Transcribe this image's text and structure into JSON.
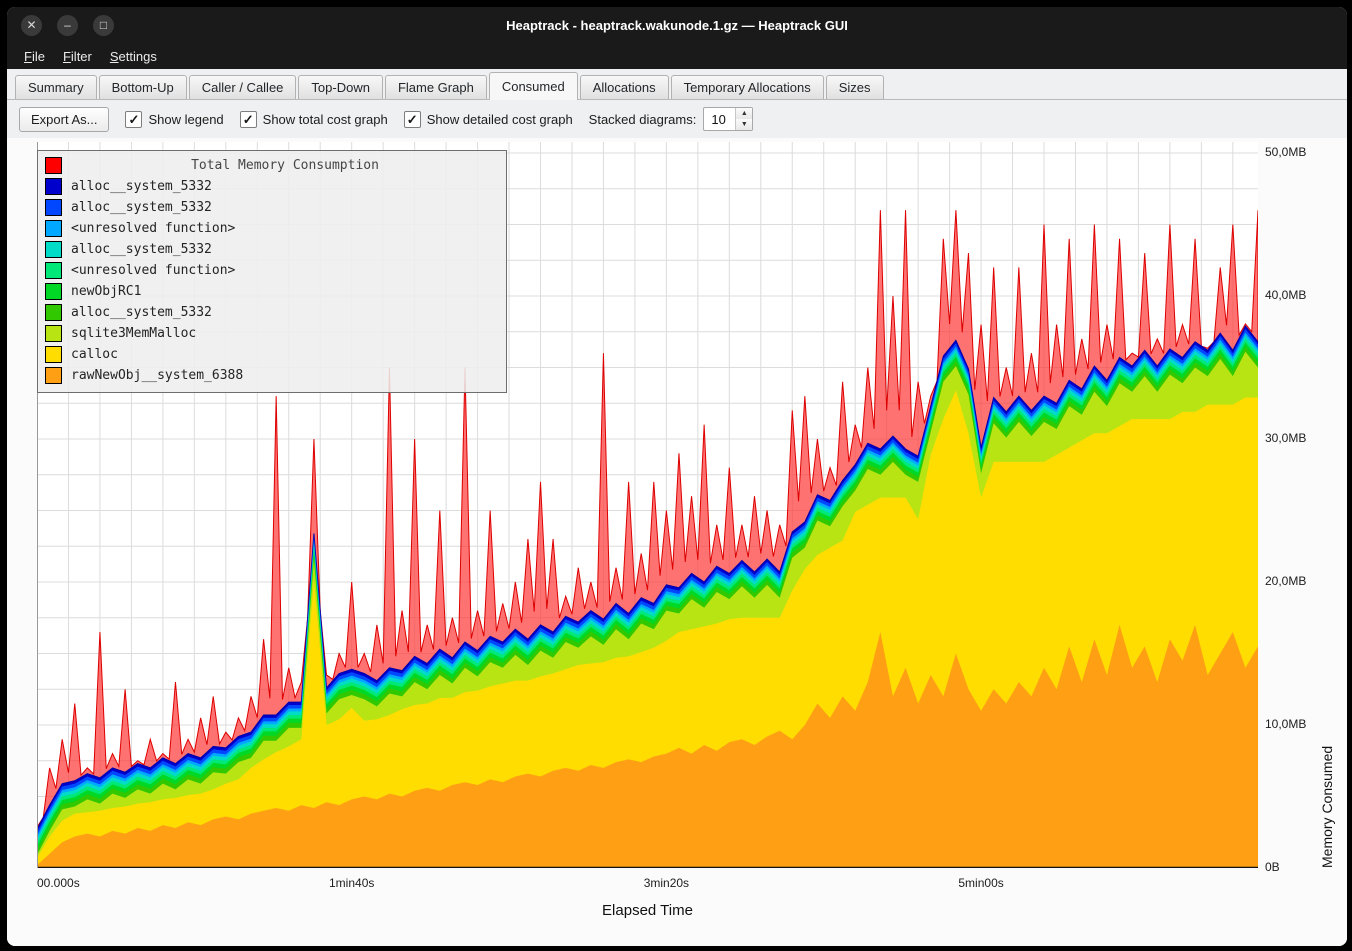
{
  "window": {
    "title": "Heaptrack - heaptrack.wakunode.1.gz — Heaptrack GUI",
    "buttons": [
      {
        "name": "close",
        "glyph": "✕"
      },
      {
        "name": "minimize",
        "glyph": "–"
      },
      {
        "name": "maximize",
        "glyph": "□"
      }
    ]
  },
  "menu": {
    "items": [
      "File",
      "Filter",
      "Settings"
    ]
  },
  "tabs": {
    "items": [
      "Summary",
      "Bottom-Up",
      "Caller / Callee",
      "Top-Down",
      "Flame Graph",
      "Consumed",
      "Allocations",
      "Temporary Allocations",
      "Sizes"
    ],
    "active": "Consumed"
  },
  "toolbar": {
    "export_button": "Export As...",
    "checkboxes": [
      {
        "label": "Show legend",
        "checked": true
      },
      {
        "label": "Show total cost graph",
        "checked": true
      },
      {
        "label": "Show detailed cost graph",
        "checked": true
      }
    ],
    "stacked_label": "Stacked diagrams:",
    "stacked_value": "10"
  },
  "icons": {
    "check": "✓",
    "spin_up": "▲",
    "spin_down": "▼"
  },
  "chart_data": {
    "type": "area",
    "legend_title": "Total Memory Consumption",
    "xlabel": "Elapsed Time",
    "ylabel": "Memory Consumed",
    "x_max_seconds": 388,
    "y_max_mb": 50,
    "t_step_seconds": 4,
    "grid": {
      "x_every_seconds": 10,
      "y_every_mb": 2.5
    },
    "x_ticks": [
      {
        "t": 0,
        "label": "00.000s"
      },
      {
        "t": 100,
        "label": "1min40s"
      },
      {
        "t": 200,
        "label": "3min20s"
      },
      {
        "t": 300,
        "label": "5min00s"
      }
    ],
    "y_ticks": [
      {
        "v": 0,
        "label": "0B"
      },
      {
        "v": 10,
        "label": "10,0MB"
      },
      {
        "v": 20,
        "label": "20,0MB"
      },
      {
        "v": 30,
        "label": "30,0MB"
      },
      {
        "v": 40,
        "label": "40,0MB"
      },
      {
        "v": 50,
        "label": "50,0MB"
      }
    ],
    "total": {
      "name": "Total Memory Consumption",
      "color": "#ff0000",
      "values": [
        1.0,
        7.0,
        9.0,
        11.5,
        7.0,
        16.5,
        8.0,
        12.5,
        7.5,
        9.0,
        8.0,
        13.0,
        9.0,
        10.5,
        12.0,
        9.5,
        10.5,
        12.0,
        16.0,
        33.0,
        14.0,
        13.0,
        30.0,
        13.5,
        15.0,
        20.0,
        15.0,
        17.0,
        35.0,
        18.0,
        30.0,
        17.0,
        25.0,
        17.5,
        35.0,
        18.0,
        25.0,
        18.5,
        20.0,
        23.0,
        27.0,
        23.0,
        19.0,
        21.0,
        20.0,
        36.0,
        21.0,
        27.0,
        22.0,
        27.0,
        25.0,
        29.0,
        26.0,
        31.0,
        24.0,
        28.0,
        24.0,
        26.0,
        25.0,
        24.0,
        32.0,
        33.0,
        30.0,
        28.0,
        34.0,
        31.0,
        35.0,
        46.0,
        40.0,
        46.0,
        34.0,
        33.0,
        44.0,
        46.0,
        43.0,
        38.0,
        42.0,
        35.0,
        42.0,
        36.0,
        45.0,
        38.0,
        44.0,
        37.0,
        45.0,
        38.0,
        44.0,
        36.0,
        43.0,
        37.0,
        45.0,
        38.0,
        44.0,
        36.0,
        42.0,
        45.0,
        38.0,
        46.0
      ]
    },
    "stack": [
      {
        "name": "rawNewObj__system_6388",
        "color": "#ffa014",
        "values": [
          0.2,
          1.0,
          1.8,
          2.2,
          2.4,
          2.2,
          2.6,
          2.4,
          2.8,
          2.6,
          3.0,
          2.8,
          3.2,
          3.0,
          3.4,
          3.6,
          3.4,
          3.8,
          4.0,
          4.2,
          4.0,
          4.4,
          4.2,
          4.6,
          4.4,
          4.8,
          5.0,
          4.8,
          5.2,
          5.0,
          5.4,
          5.6,
          5.4,
          5.8,
          6.0,
          5.8,
          6.2,
          6.0,
          6.4,
          6.6,
          6.4,
          6.8,
          7.0,
          6.8,
          7.2,
          7.0,
          7.4,
          7.6,
          7.4,
          7.8,
          8.0,
          8.4,
          8.0,
          8.6,
          8.2,
          8.8,
          9.0,
          8.6,
          9.2,
          9.6,
          9.0,
          10.0,
          11.5,
          10.5,
          12.0,
          11.0,
          13.0,
          16.5,
          12.0,
          14.0,
          11.5,
          13.5,
          12.0,
          15.0,
          12.5,
          11.0,
          12.5,
          11.5,
          13.0,
          12.0,
          14.0,
          12.5,
          15.5,
          13.0,
          16.0,
          13.5,
          17.0,
          14.0,
          15.5,
          13.0,
          16.0,
          14.5,
          17.0,
          13.5,
          15.0,
          16.5,
          14.0,
          15.5
        ]
      },
      {
        "name": "calloc",
        "color": "#ffdd00",
        "values": [
          0.5,
          1.2,
          1.5,
          1.6,
          1.5,
          1.8,
          1.6,
          1.9,
          1.7,
          2.0,
          1.8,
          2.1,
          1.9,
          2.2,
          2.1,
          2.3,
          2.8,
          3.2,
          3.6,
          3.9,
          4.5,
          4.6,
          16.0,
          5.4,
          6.0,
          6.4,
          5.3,
          5.6,
          5.5,
          6.1,
          6.0,
          5.9,
          6.5,
          6.1,
          6.3,
          6.6,
          6.5,
          6.9,
          6.7,
          6.5,
          7.0,
          6.8,
          6.9,
          7.4,
          7.1,
          7.4,
          7.3,
          7.2,
          7.7,
          7.6,
          7.9,
          8.1,
          8.7,
          8.3,
          8.9,
          8.6,
          8.5,
          8.9,
          8.3,
          7.9,
          10.4,
          10.9,
          10.4,
          11.9,
          10.9,
          13.9,
          12.4,
          9.4,
          13.9,
          11.9,
          12.9,
          15.4,
          19.4,
          18.4,
          17.9,
          14.9,
          15.9,
          16.9,
          15.4,
          16.4,
          14.4,
          16.4,
          13.9,
          16.9,
          14.4,
          16.9,
          13.9,
          17.4,
          15.9,
          18.4,
          15.4,
          17.4,
          14.9,
          18.9,
          17.4,
          15.9,
          18.9,
          17.4
        ]
      },
      {
        "name": "sqlite3MemMalloc",
        "color": "#b8e414",
        "values": [
          0.2,
          0.4,
          0.8,
          0.5,
          0.9,
          0.5,
          1.0,
          0.6,
          1.0,
          0.6,
          1.1,
          0.6,
          1.1,
          0.7,
          1.2,
          0.7,
          1.2,
          0.7,
          1.3,
          0.8,
          1.3,
          0.8,
          1.4,
          0.8,
          1.4,
          0.9,
          1.5,
          0.9,
          1.5,
          0.9,
          1.6,
          1.0,
          1.6,
          1.0,
          1.7,
          1.0,
          1.7,
          1.1,
          1.8,
          1.1,
          1.8,
          1.1,
          1.9,
          1.2,
          1.9,
          1.2,
          2.0,
          1.2,
          2.0,
          1.3,
          2.1,
          1.3,
          2.1,
          1.3,
          2.2,
          1.4,
          2.2,
          1.4,
          2.3,
          1.4,
          2.3,
          1.5,
          2.4,
          1.5,
          2.4,
          1.5,
          2.5,
          1.6,
          2.5,
          1.6,
          2.6,
          1.6,
          2.6,
          1.7,
          2.7,
          1.7,
          2.7,
          1.7,
          2.8,
          1.8,
          2.8,
          1.8,
          2.9,
          1.8,
          2.9,
          1.9,
          3.0,
          1.9,
          3.0,
          1.9,
          3.1,
          2.0,
          3.1,
          2.0,
          3.2,
          2.0,
          3.2,
          2.1
        ]
      },
      {
        "name": "alloc__system_5332",
        "color": "#31c800",
        "const": 0.35
      },
      {
        "name": "newObjRC1",
        "color": "#00d825",
        "const": 0.3
      },
      {
        "name": "<unresolved function>",
        "color": "#00e878",
        "const": 0.25
      },
      {
        "name": "alloc__system_5332",
        "color": "#00dcc8",
        "const": 0.25
      },
      {
        "name": "<unresolved function>",
        "color": "#00a8ff",
        "const": 0.2
      },
      {
        "name": "alloc__system_5332",
        "color": "#0047ff",
        "const": 0.25
      },
      {
        "name": "alloc__system_5332",
        "color": "#0000cd",
        "const": 0.2
      }
    ]
  }
}
